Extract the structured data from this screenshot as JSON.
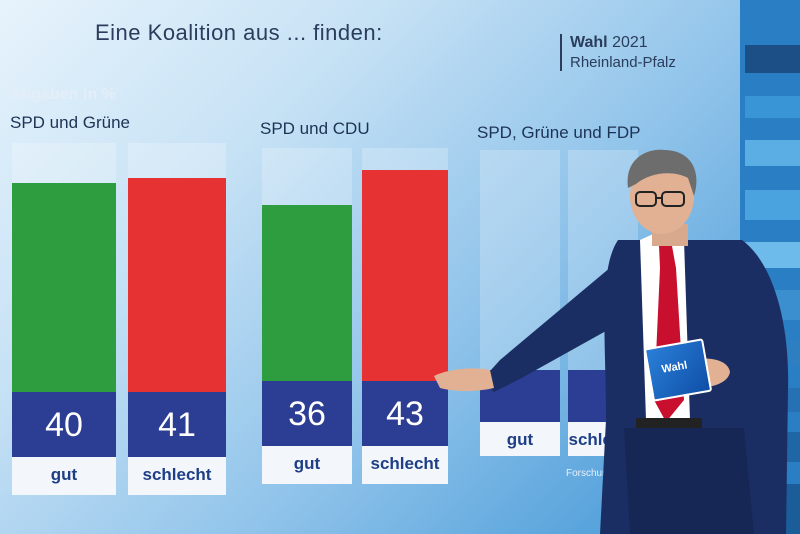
{
  "headline": "Eine Koalition aus ... finden:",
  "brand": {
    "word": "Wahl",
    "year": "2021",
    "region": "Rheinland-Pfalz"
  },
  "units_note": "Angaben in %",
  "source_note": "Forschung",
  "card_text": "Wahl",
  "colors": {
    "gut": "#2e9d3f",
    "schlecht": "#e63232",
    "tile": "#2c3e93",
    "label_bg": "#f3f6fb"
  },
  "chart_data": [
    {
      "type": "bar",
      "title": "SPD und Grüne",
      "categories": [
        "gut",
        "schlecht"
      ],
      "values": [
        40,
        41
      ]
    },
    {
      "type": "bar",
      "title": "SPD und CDU",
      "categories": [
        "gut",
        "schlecht"
      ],
      "values": [
        36,
        43
      ]
    },
    {
      "type": "bar",
      "title": "SPD, Grüne und FDP",
      "categories": [
        "gut",
        "schlecht"
      ],
      "values": [
        null,
        null
      ]
    }
  ]
}
